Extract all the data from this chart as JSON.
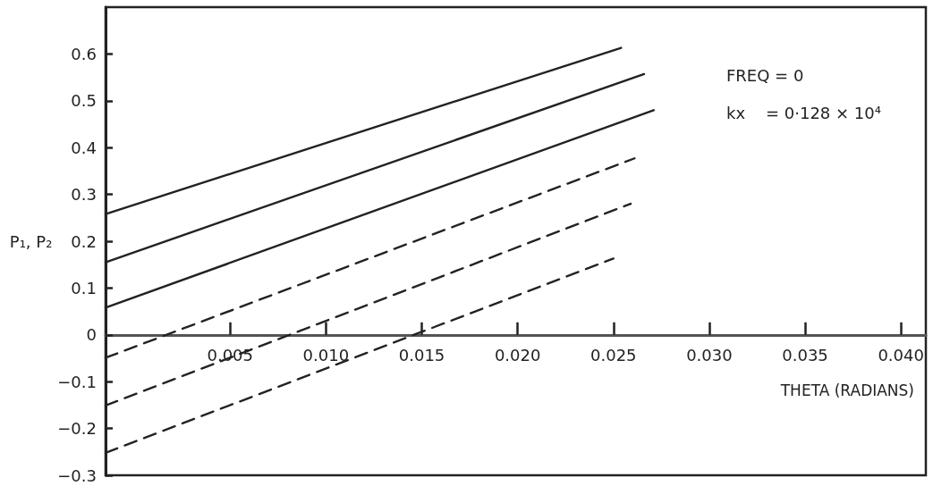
{
  "chart_data": {
    "type": "line",
    "xlabel": "THETA (RADIANS)",
    "ylabel": "P₁, P₂",
    "annotations": [
      "FREQ = 0",
      "kx    = 0·128 × 10⁴"
    ],
    "xlim": [
      -0.0015,
      0.0413
    ],
    "ylim": [
      -0.3,
      0.7
    ],
    "xticks": [
      0.005,
      {
        "value": 0.01,
        "label": "0.010"
      },
      0.015,
      {
        "value": 0.02,
        "label": "0.020"
      },
      0.025,
      {
        "value": 0.03,
        "label": "0.030"
      },
      0.035,
      {
        "value": 0.04,
        "label": "0.040"
      }
    ],
    "yticks": [
      {
        "value": -0.3,
        "label": "−0.3"
      },
      {
        "value": -0.2,
        "label": "−0.2"
      },
      {
        "value": -0.1,
        "label": "−0.1"
      },
      0,
      0.1,
      0.2,
      0.3,
      0.4,
      0.5,
      0.6
    ],
    "grid": false,
    "marker": "none",
    "series": [
      {
        "color": "#222222",
        "line_style": "solid",
        "x": [
          -0.0015,
          0.0254
        ],
        "values": [
          0.258,
          0.613
        ]
      },
      {
        "color": "#222222",
        "line_style": "solid",
        "x": [
          -0.0015,
          0.0266
        ],
        "values": [
          0.155,
          0.557
        ]
      },
      {
        "color": "#222222",
        "line_style": "solid",
        "x": [
          -0.0015,
          0.0271
        ],
        "values": [
          0.058,
          0.48
        ]
      },
      {
        "color": "#222222",
        "line_style": "dashed",
        "x": [
          -0.0015,
          0.0261
        ],
        "values": [
          -0.049,
          0.377
        ]
      },
      {
        "color": "#222222",
        "line_style": "dashed",
        "x": [
          -0.0015,
          0.0259
        ],
        "values": [
          -0.151,
          0.28
        ]
      },
      {
        "color": "#222222",
        "line_style": "dashed",
        "x": [
          -0.0015,
          0.025
        ],
        "values": [
          -0.252,
          0.163
        ]
      }
    ]
  }
}
